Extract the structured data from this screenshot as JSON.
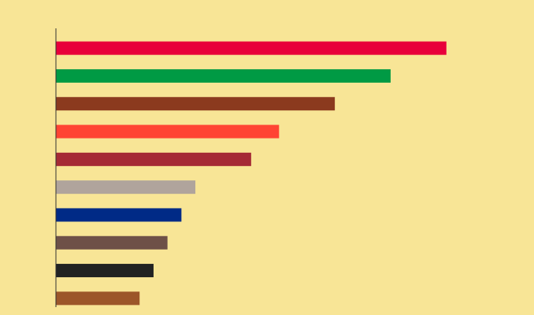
{
  "chart_data": {
    "type": "barh",
    "categories": [
      null,
      null,
      null,
      null,
      null,
      null,
      null,
      null,
      null,
      null
    ],
    "values": [
      28,
      24,
      20,
      16,
      14,
      10,
      9,
      8,
      7,
      6
    ],
    "colors": [
      "#e8003a",
      "#009a44",
      "#8b3a1e",
      "#ff4433",
      "#a52a35",
      "#b0a49c",
      "#002a86",
      "#6e5047",
      "#222222",
      "#9c5629"
    ],
    "xlim": [
      0,
      34
    ]
  }
}
